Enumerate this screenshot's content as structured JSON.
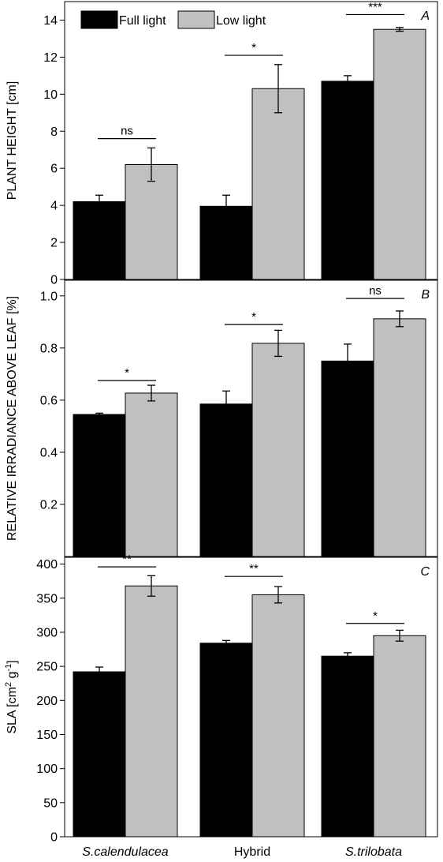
{
  "chart_data": [
    {
      "type": "bar",
      "panel": "A",
      "ylabel": "PLANT HEIGHT [cm]",
      "ylim": [
        0,
        15
      ],
      "yticks": [
        0,
        2,
        4,
        6,
        8,
        10,
        12,
        14
      ],
      "ytick_labels": [
        "0",
        "2",
        "4",
        "6",
        "8",
        "10",
        "12",
        "14"
      ],
      "categories": [
        "S.calendulacea",
        "Hybrid",
        "S.trilobata"
      ],
      "series": [
        {
          "name": "Full light",
          "color": "#000000",
          "values": [
            4.2,
            3.95,
            10.7
          ],
          "errors": [
            0.35,
            0.6,
            0.3
          ]
        },
        {
          "name": "Low light",
          "color": "#c0c0c0",
          "values": [
            6.2,
            10.3,
            13.5
          ],
          "errors": [
            0.9,
            1.3,
            0.1
          ]
        }
      ],
      "significance": [
        "ns",
        "*",
        "***"
      ],
      "sig_levels": [
        7.6,
        12.1,
        14.3
      ],
      "grid": false,
      "legend": "top-left"
    },
    {
      "type": "bar",
      "panel": "B",
      "ylabel": "RELATIVE IRRADIANCE ABOVE LEAF [%]",
      "ylim": [
        0,
        1.06
      ],
      "yticks": [
        0.2,
        0.4,
        0.6,
        0.8,
        1.0
      ],
      "ytick_labels": [
        "0.2",
        "0.4",
        "0.6",
        "0.8",
        "1.0"
      ],
      "categories": [
        "S.calendulacea",
        "Hybrid",
        "S.trilobata"
      ],
      "series": [
        {
          "name": "Full light",
          "color": "#000000",
          "values": [
            0.545,
            0.585,
            0.75
          ],
          "errors": [
            0.005,
            0.05,
            0.065
          ]
        },
        {
          "name": "Low light",
          "color": "#c0c0c0",
          "values": [
            0.627,
            0.818,
            0.912
          ],
          "errors": [
            0.03,
            0.05,
            0.03
          ]
        }
      ],
      "significance": [
        "*",
        "*",
        "ns"
      ],
      "sig_levels": [
        0.675,
        0.89,
        0.99
      ],
      "grid": false
    },
    {
      "type": "bar",
      "panel": "C",
      "ylabel": "SLA [cm2 g-1]",
      "ylabel_parts": {
        "main": "SLA  [cm",
        "sup1": "2",
        "mid": " g",
        "sup2": "-1",
        "end": "]"
      },
      "ylim": [
        0,
        410
      ],
      "yticks": [
        0,
        50,
        100,
        150,
        200,
        250,
        300,
        350,
        400
      ],
      "ytick_labels": [
        "0",
        "50",
        "100",
        "150",
        "200",
        "250",
        "300",
        "350",
        "400"
      ],
      "categories": [
        "S.calendulacea",
        "Hybrid",
        "S.trilobata"
      ],
      "series": [
        {
          "name": "Full light",
          "color": "#000000",
          "values": [
            242,
            284,
            265
          ],
          "errors": [
            7,
            4,
            5
          ]
        },
        {
          "name": "Low light",
          "color": "#c0c0c0",
          "values": [
            368,
            355,
            295
          ],
          "errors": [
            15,
            12,
            8
          ]
        }
      ],
      "significance": [
        "**",
        "**",
        "*"
      ],
      "sig_levels": [
        396,
        382,
        313
      ],
      "grid": false
    }
  ],
  "legend": {
    "items": [
      {
        "label": "Full light",
        "color": "#000000"
      },
      {
        "label": "Low light",
        "color": "#c0c0c0"
      }
    ]
  },
  "category_labels": [
    "S.calendulacea",
    "Hybrid",
    "S.trilobata"
  ]
}
